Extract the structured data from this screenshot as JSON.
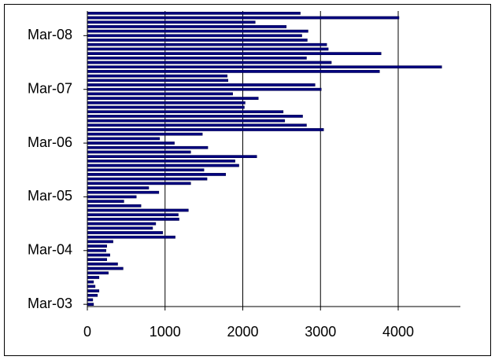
{
  "chart_data": {
    "type": "bar",
    "orientation": "horizontal",
    "color": "#00007f",
    "categories": [
      "Mar-03",
      null,
      null,
      null,
      null,
      null,
      null,
      null,
      null,
      null,
      null,
      null,
      "Mar-04",
      null,
      null,
      null,
      null,
      null,
      null,
      null,
      null,
      null,
      null,
      null,
      "Mar-05",
      null,
      null,
      null,
      null,
      null,
      null,
      null,
      null,
      null,
      null,
      null,
      "Mar-06",
      null,
      null,
      null,
      null,
      null,
      null,
      null,
      null,
      null,
      null,
      null,
      "Mar-07",
      null,
      null,
      null,
      null,
      null,
      null,
      null,
      null,
      null,
      null,
      null,
      "Mar-08",
      null,
      null,
      null,
      null,
      null
    ],
    "values": [
      80,
      70,
      130,
      150,
      100,
      80,
      150,
      270,
      460,
      390,
      250,
      290,
      240,
      250,
      330,
      1130,
      970,
      840,
      880,
      1180,
      1170,
      1300,
      690,
      470,
      630,
      920,
      790,
      1330,
      1540,
      1780,
      1500,
      1950,
      1900,
      2180,
      1330,
      1550,
      1120,
      930,
      1480,
      3040,
      2820,
      2540,
      2770,
      2520,
      2020,
      2030,
      2200,
      1870,
      3010,
      2930,
      1810,
      1800,
      3760,
      4560,
      3140,
      2820,
      3780,
      3100,
      3080,
      2830,
      2760,
      2840,
      2560,
      2160,
      4010,
      2740
    ],
    "xlim": [
      0,
      4800
    ],
    "xticks": [
      0,
      1000,
      2000,
      3000,
      4000
    ],
    "grid": true
  }
}
